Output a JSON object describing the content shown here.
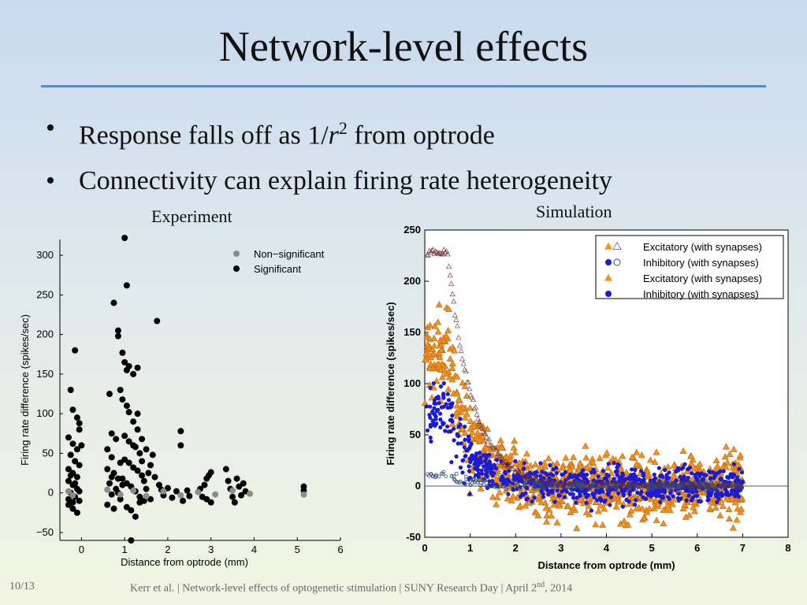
{
  "slide": {
    "title": "Network-level effects",
    "bullets": [
      {
        "pre": "Response falls off as 1/",
        "var": "r",
        "sup": "2",
        "post": " from optrode"
      },
      {
        "pre": "Connectivity can explain firing rate heterogeneity",
        "var": "",
        "sup": "",
        "post": ""
      }
    ],
    "bullet_glyph": "•",
    "footer": {
      "slide_number": "10/13",
      "text": "Kerr et al.   |   Network-level effects of optogenetic stimulation   |   SUNY Research Day   |   April 2",
      "text_sup": "nd",
      "text_end": ", 2014"
    }
  },
  "colors": {
    "accent_rule": "#5b8ac4",
    "significant": "#000000",
    "non_significant": "#8c8c8c",
    "excitatory": "#f5901e",
    "inhibitory": "#1a1ad6",
    "excitatory_no_syn": "#6b2e2e",
    "inhibitory_no_syn": "#2e4f7a"
  },
  "chart_data": [
    {
      "type": "scatter",
      "title": "Experiment",
      "xlabel": "Distance from optrode (mm)",
      "ylabel": "Firing rate difference (spikes/sec)",
      "xlim": [
        -0.5,
        6
      ],
      "ylim": [
        -60,
        320
      ],
      "xticks": [
        "0",
        "1",
        "2",
        "3",
        "4",
        "5",
        "6"
      ],
      "yticks": [
        "−50",
        "0",
        "50",
        "100",
        "150",
        "200",
        "250",
        "300"
      ],
      "legend": {
        "placement": "top-right",
        "entries": [
          "Non−significant",
          "Significant"
        ]
      },
      "series": [
        {
          "name": "Non−significant",
          "points": [
            [
              -0.3,
              2
            ],
            [
              -0.2,
              -3
            ],
            [
              0.6,
              4
            ],
            [
              0.9,
              -2
            ],
            [
              1.2,
              3
            ],
            [
              1.5,
              -4
            ],
            [
              1.9,
              2
            ],
            [
              2.3,
              -3
            ],
            [
              2.7,
              1
            ],
            [
              3.1,
              -2
            ],
            [
              3.5,
              3
            ],
            [
              3.9,
              -1
            ],
            [
              5.15,
              -2
            ]
          ]
        },
        {
          "name": "Significant",
          "points": [
            [
              -0.25,
              130
            ],
            [
              -0.2,
              105
            ],
            [
              -0.15,
              180
            ],
            [
              -0.1,
              95
            ],
            [
              -0.05,
              88
            ],
            [
              -0.3,
              70
            ],
            [
              -0.2,
              62
            ],
            [
              -0.1,
              55
            ],
            [
              -0.25,
              48
            ],
            [
              -0.15,
              40
            ],
            [
              -0.05,
              35
            ],
            [
              -0.3,
              30
            ],
            [
              -0.2,
              25
            ],
            [
              -0.1,
              20
            ],
            [
              -0.3,
              15
            ],
            [
              -0.2,
              10
            ],
            [
              -0.1,
              5
            ],
            [
              -0.25,
              0
            ],
            [
              -0.15,
              -5
            ],
            [
              -0.05,
              -10
            ],
            [
              -0.3,
              -15
            ],
            [
              -0.2,
              -20
            ],
            [
              -0.1,
              -25
            ],
            [
              -0.25,
              22
            ],
            [
              -0.15,
              12
            ],
            [
              -0.05,
              2
            ],
            [
              -0.3,
              -8
            ],
            [
              -0.2,
              -12
            ],
            [
              0.0,
              60
            ],
            [
              -0.05,
              80
            ],
            [
              0.65,
              125
            ],
            [
              0.75,
              240
            ],
            [
              0.85,
              205
            ],
            [
              0.85,
              198
            ],
            [
              0.9,
              130
            ],
            [
              0.7,
              75
            ],
            [
              0.8,
              68
            ],
            [
              0.6,
              55
            ],
            [
              0.7,
              45
            ],
            [
              0.9,
              38
            ],
            [
              0.6,
              30
            ],
            [
              0.75,
              25
            ],
            [
              0.85,
              18
            ],
            [
              0.65,
              12
            ],
            [
              0.8,
              5
            ],
            [
              0.7,
              -2
            ],
            [
              0.9,
              -8
            ],
            [
              0.6,
              -15
            ],
            [
              0.75,
              -20
            ],
            [
              0.85,
              0
            ],
            [
              0.95,
              10
            ],
            [
              0.7,
              20
            ],
            [
              1.0,
              322
            ],
            [
              1.05,
              262
            ],
            [
              0.95,
              177
            ],
            [
              1.0,
              165
            ],
            [
              1.05,
              155
            ],
            [
              1.1,
              160
            ],
            [
              1.2,
              150
            ],
            [
              1.3,
              158
            ],
            [
              0.95,
              118
            ],
            [
              1.05,
              110
            ],
            [
              1.1,
              102
            ],
            [
              1.2,
              90
            ],
            [
              1.3,
              80
            ],
            [
              1.0,
              72
            ],
            [
              1.1,
              65
            ],
            [
              1.25,
              58
            ],
            [
              1.35,
              50
            ],
            [
              1.0,
              42
            ],
            [
              1.1,
              38
            ],
            [
              1.2,
              32
            ],
            [
              1.3,
              28
            ],
            [
              1.4,
              22
            ],
            [
              0.95,
              18
            ],
            [
              1.05,
              12
            ],
            [
              1.15,
              8
            ],
            [
              1.25,
              2
            ],
            [
              1.35,
              -5
            ],
            [
              1.45,
              -10
            ],
            [
              1.05,
              -18
            ],
            [
              1.15,
              -22
            ],
            [
              1.25,
              -30
            ],
            [
              1.35,
              -12
            ],
            [
              1.45,
              15
            ],
            [
              1.55,
              25
            ],
            [
              1.5,
              5
            ],
            [
              1.6,
              -8
            ],
            [
              1.4,
              40
            ],
            [
              1.15,
              -60
            ],
            [
              1.2,
              60
            ],
            [
              1.3,
              100
            ],
            [
              1.4,
              68
            ],
            [
              1.5,
              55
            ],
            [
              1.65,
              48
            ],
            [
              1.6,
              35
            ],
            [
              1.7,
              20
            ],
            [
              1.75,
              217
            ],
            [
              1.8,
              10
            ],
            [
              1.85,
              4
            ],
            [
              1.9,
              -3
            ],
            [
              2.0,
              6
            ],
            [
              2.1,
              -6
            ],
            [
              2.2,
              2
            ],
            [
              2.3,
              78
            ],
            [
              2.3,
              60
            ],
            [
              2.35,
              -10
            ],
            [
              2.45,
              3
            ],
            [
              2.5,
              -4
            ],
            [
              2.75,
              5
            ],
            [
              2.8,
              -5
            ],
            [
              2.85,
              10
            ],
            [
              2.9,
              18
            ],
            [
              2.95,
              22
            ],
            [
              3.0,
              26
            ],
            [
              3.0,
              -12
            ],
            [
              2.9,
              -8
            ],
            [
              3.35,
              30
            ],
            [
              3.4,
              15
            ],
            [
              3.45,
              5
            ],
            [
              3.5,
              -5
            ],
            [
              3.55,
              -12
            ],
            [
              3.6,
              18
            ],
            [
              3.65,
              8
            ],
            [
              3.7,
              -3
            ],
            [
              3.75,
              12
            ],
            [
              3.8,
              2
            ],
            [
              5.15,
              8
            ],
            [
              5.15,
              3
            ]
          ]
        }
      ]
    },
    {
      "type": "scatter",
      "title": "Simulation",
      "xlabel": "Distance from optrode (mm)",
      "ylabel": "Firing rate difference (spikes/sec)",
      "xlim": [
        0,
        8
      ],
      "ylim": [
        -50,
        250
      ],
      "xticks": [
        "0",
        "1",
        "2",
        "3",
        "4",
        "5",
        "6",
        "7",
        "8"
      ],
      "yticks": [
        "-50",
        "0",
        "50",
        "100",
        "150",
        "200",
        "250"
      ],
      "legend": {
        "placement": "top-right",
        "entries": [
          "Excitatory (with synapses)",
          "Inhibitory (with synapses)",
          "Excitatory (with synapses)",
          "Inhibitory (with synapses)"
        ]
      },
      "model": {
        "excitatory_no_syn_peak": 228,
        "excitatory_no_syn_plateau_end_mm": 0.5,
        "decay_length_mm": 0.55,
        "x_max_mm": 7.0,
        "excitatory_spread": 22,
        "inhibitory_spread": 12
      },
      "series": [
        {
          "name": "Excitatory (with synapses)",
          "points": [
            [
              0.1,
              150
            ],
            [
              0.2,
              170
            ],
            [
              0.3,
              210
            ],
            [
              0.5,
              180
            ],
            [
              0.8,
              120
            ],
            [
              1.0,
              80
            ],
            [
              1.5,
              40
            ],
            [
              2.0,
              20
            ],
            [
              3.0,
              10
            ],
            [
              4.0,
              -20
            ],
            [
              4.5,
              -40
            ],
            [
              5.0,
              30
            ],
            [
              6.0,
              10
            ],
            [
              7.0,
              0
            ]
          ]
        },
        {
          "name": "Inhibitory (with synapses)",
          "points": [
            [
              0.05,
              95
            ],
            [
              0.2,
              90
            ],
            [
              0.5,
              70
            ],
            [
              1.0,
              40
            ],
            [
              1.5,
              15
            ],
            [
              2.0,
              5
            ],
            [
              3.0,
              3
            ],
            [
              4.0,
              2
            ],
            [
              5.0,
              1
            ],
            [
              6.0,
              0
            ],
            [
              7.0,
              0
            ]
          ]
        }
      ]
    }
  ]
}
